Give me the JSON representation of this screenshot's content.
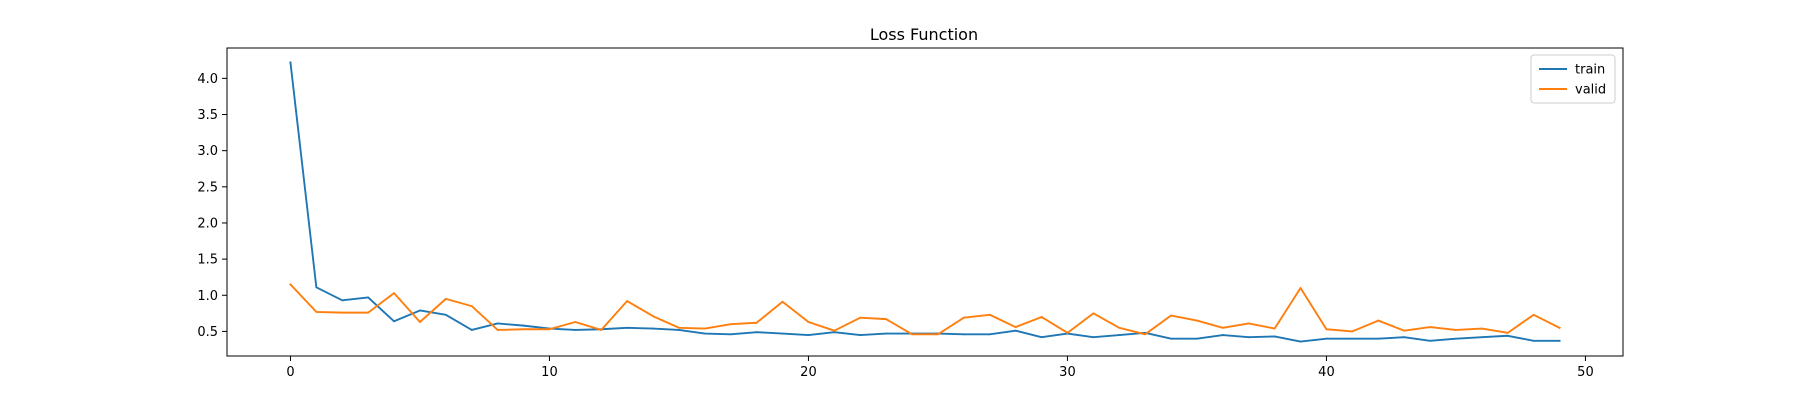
{
  "chart_data": {
    "type": "line",
    "title": "Loss Function",
    "xlabel": "",
    "ylabel": "",
    "xlim": [
      -2.45,
      51.45
    ],
    "ylim": [
      0.16,
      4.42
    ],
    "xticks": [
      0,
      10,
      20,
      30,
      40,
      50
    ],
    "yticks": [
      0.5,
      1.0,
      1.5,
      2.0,
      2.5,
      3.0,
      3.5,
      4.0
    ],
    "grid": false,
    "legend": {
      "position": "top-right"
    },
    "x": [
      0,
      1,
      2,
      3,
      4,
      5,
      6,
      7,
      8,
      9,
      10,
      11,
      12,
      13,
      14,
      15,
      16,
      17,
      18,
      19,
      20,
      21,
      22,
      23,
      24,
      25,
      26,
      27,
      28,
      29,
      30,
      31,
      32,
      33,
      34,
      35,
      36,
      37,
      38,
      39,
      40,
      41,
      42,
      43,
      44,
      45,
      46,
      47,
      48,
      49
    ],
    "series": [
      {
        "name": "train",
        "color": "#1f77b4",
        "values": [
          4.22,
          1.11,
          0.93,
          0.97,
          0.64,
          0.79,
          0.73,
          0.52,
          0.61,
          0.58,
          0.54,
          0.52,
          0.53,
          0.55,
          0.54,
          0.52,
          0.47,
          0.46,
          0.49,
          0.47,
          0.45,
          0.49,
          0.45,
          0.47,
          0.47,
          0.47,
          0.46,
          0.46,
          0.51,
          0.42,
          0.47,
          0.42,
          0.45,
          0.48,
          0.4,
          0.4,
          0.45,
          0.42,
          0.43,
          0.36,
          0.4,
          0.4,
          0.4,
          0.42,
          0.37,
          0.4,
          0.42,
          0.44,
          0.37,
          0.37
        ]
      },
      {
        "name": "valid",
        "color": "#ff7f0e",
        "values": [
          1.15,
          0.77,
          0.76,
          0.76,
          1.03,
          0.63,
          0.95,
          0.85,
          0.52,
          0.53,
          0.53,
          0.63,
          0.52,
          0.92,
          0.71,
          0.55,
          0.54,
          0.6,
          0.62,
          0.91,
          0.63,
          0.51,
          0.69,
          0.67,
          0.46,
          0.46,
          0.69,
          0.73,
          0.56,
          0.7,
          0.48,
          0.75,
          0.55,
          0.46,
          0.72,
          0.65,
          0.55,
          0.61,
          0.54,
          1.1,
          0.53,
          0.5,
          0.65,
          0.51,
          0.56,
          0.52,
          0.54,
          0.48,
          0.73,
          0.55
        ]
      }
    ]
  }
}
